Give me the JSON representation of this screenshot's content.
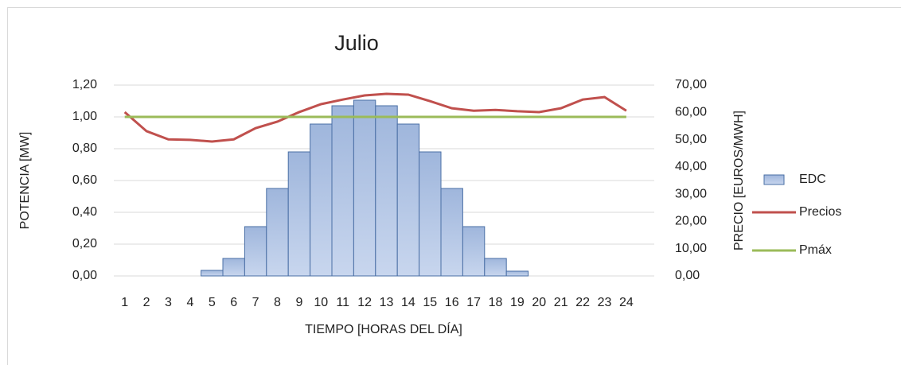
{
  "chart_data": {
    "type": "bar-line",
    "title": "Julio",
    "x_label": "TIEMPO [HORAS DEL DÍA]",
    "y_label": "POTENCIA  [MW]",
    "y2_label": "PRECIO [EUROS/MWH]",
    "categories": [
      "1",
      "2",
      "3",
      "4",
      "5",
      "6",
      "7",
      "8",
      "9",
      "10",
      "11",
      "12",
      "13",
      "14",
      "15",
      "16",
      "17",
      "18",
      "19",
      "20",
      "21",
      "22",
      "23",
      "24"
    ],
    "series": [
      {
        "name": "EDC",
        "type": "bar",
        "color": "#4a6fa5",
        "values": [
          0,
          0,
          0,
          0,
          0.035,
          0.11,
          0.31,
          0.55,
          0.78,
          0.955,
          1.07,
          1.105,
          1.07,
          0.955,
          0.78,
          0.55,
          0.31,
          0.11,
          0.03,
          0,
          0,
          0,
          0,
          0
        ]
      },
      {
        "name": "Precios",
        "type": "line",
        "axis": "y2",
        "color": "#c0504d",
        "values": [
          60.1,
          53.1,
          50.1,
          49.9,
          49.3,
          50.1,
          54.2,
          56.6,
          60.1,
          63.0,
          64.7,
          66.2,
          66.8,
          66.5,
          64.1,
          61.5,
          60.6,
          60.9,
          60.4,
          60.1,
          61.5,
          64.7,
          65.6,
          60.6
        ]
      },
      {
        "name": "Pmáx",
        "type": "line",
        "color": "#9bbb59",
        "values": [
          1,
          1,
          1,
          1,
          1,
          1,
          1,
          1,
          1,
          1,
          1,
          1,
          1,
          1,
          1,
          1,
          1,
          1,
          1,
          1,
          1,
          1,
          1,
          1
        ]
      }
    ],
    "ylim": [
      0,
      1.2
    ],
    "yticks": [
      {
        "value": 0,
        "label": "0,00"
      },
      {
        "value": 0.2,
        "label": "0,20"
      },
      {
        "value": 0.4,
        "label": "0,40"
      },
      {
        "value": 0.6,
        "label": "0,60"
      },
      {
        "value": 0.8,
        "label": "0,80"
      },
      {
        "value": 1,
        "label": "1,00"
      },
      {
        "value": 1.2,
        "label": "1,20"
      }
    ],
    "y2lim": [
      0,
      70
    ],
    "y2ticks": [
      {
        "value": 0,
        "label": "0,00"
      },
      {
        "value": 10,
        "label": "10,00"
      },
      {
        "value": 20,
        "label": "20,00"
      },
      {
        "value": 30,
        "label": "30,00"
      },
      {
        "value": 40,
        "label": "40,00"
      },
      {
        "value": 50,
        "label": "50,00"
      },
      {
        "value": 60,
        "label": "60,00"
      },
      {
        "value": 70,
        "label": "70,00"
      }
    ],
    "grid": true,
    "legend": "right"
  }
}
